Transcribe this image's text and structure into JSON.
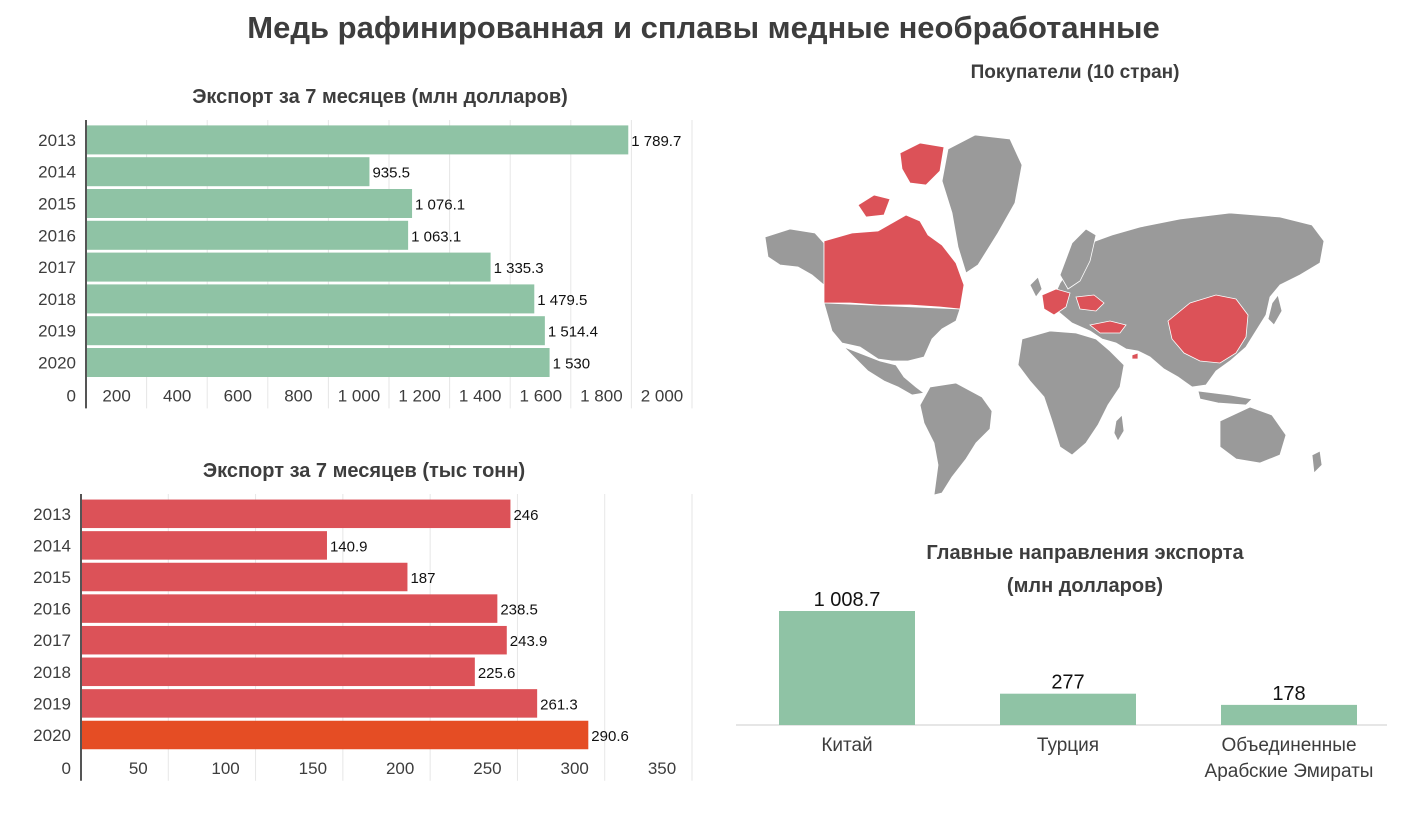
{
  "title": "Медь рафинированная и сплавы медные необработанные",
  "colors": {
    "green": "#8fc3a5",
    "red": "#dc5258",
    "orange": "#e54d24",
    "map_gray": "#9a9a9a",
    "map_red": "#dc5258",
    "text": "#3d3d3d"
  },
  "map": {
    "title": "Покупатели (10 стран)"
  },
  "chart_data": [
    {
      "type": "bar",
      "orientation": "horizontal",
      "title": "Экспорт за 7 месяцев (млн долларов)",
      "categories": [
        "2013",
        "2014",
        "2015",
        "2016",
        "2017",
        "2018",
        "2019",
        "2020"
      ],
      "values": [
        1789.7,
        935.5,
        1076.1,
        1063.1,
        1335.3,
        1479.5,
        1514.4,
        1530
      ],
      "value_labels": [
        "1 789.7",
        "935.5",
        "1 076.1",
        "1 063.1",
        "1 335.3",
        "1 479.5",
        "1 514.4",
        "1 530"
      ],
      "xlim": [
        0,
        2000
      ],
      "ticks": [
        0,
        200,
        400,
        600,
        800,
        1000,
        1200,
        1400,
        1600,
        1800,
        2000
      ],
      "tick_labels": [
        "0",
        "200",
        "400",
        "600",
        "800",
        "1 000",
        "1 200",
        "1 400",
        "1 600",
        "1 800",
        "2 000"
      ],
      "grid": true,
      "color": "#8fc3a5"
    },
    {
      "type": "bar",
      "orientation": "horizontal",
      "title": "Экспорт за 7 месяцев (тыс тонн)",
      "categories": [
        "2013",
        "2014",
        "2015",
        "2016",
        "2017",
        "2018",
        "2019",
        "2020"
      ],
      "values": [
        246,
        140.9,
        187,
        238.5,
        243.9,
        225.6,
        261.3,
        290.6
      ],
      "value_labels": [
        "246",
        "140.9",
        "187",
        "238.5",
        "243.9",
        "225.6",
        "261.3",
        "290.6"
      ],
      "xlim": [
        0,
        350
      ],
      "ticks": [
        0,
        50,
        100,
        150,
        200,
        250,
        300,
        350
      ],
      "tick_labels": [
        "0",
        "50",
        "100",
        "150",
        "200",
        "250",
        "300",
        "350"
      ],
      "grid": true,
      "color": "#dc5258",
      "highlight_color": "#e54d24",
      "highlight_index": 7
    },
    {
      "type": "bar",
      "orientation": "vertical",
      "title": "Главные направления экспорта",
      "subtitle": "(млн долларов)",
      "categories": [
        "Китай",
        "Турция",
        "Объединенные Арабские Эмираты"
      ],
      "category_lines": [
        [
          "Китай"
        ],
        [
          "Турция"
        ],
        [
          "Объединенные",
          "Арабские Эмираты"
        ]
      ],
      "values": [
        1008.7,
        277,
        178
      ],
      "value_labels": [
        "1 008.7",
        "277",
        "178"
      ],
      "color": "#8fc3a5"
    }
  ]
}
